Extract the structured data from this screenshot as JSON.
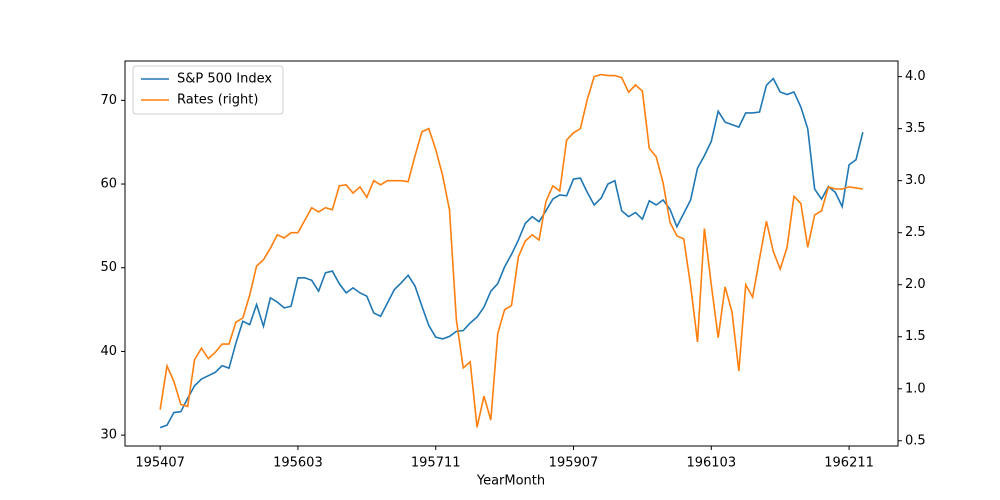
{
  "chart_data": {
    "type": "line",
    "xlabel": "YearMonth",
    "categories": [
      "195407",
      null,
      null,
      null,
      null,
      null,
      null,
      null,
      null,
      null,
      null,
      null,
      null,
      null,
      null,
      null,
      null,
      null,
      null,
      null,
      "195603",
      null,
      null,
      null,
      null,
      null,
      null,
      null,
      null,
      null,
      null,
      null,
      null,
      null,
      null,
      null,
      null,
      null,
      null,
      null,
      "195711",
      null,
      null,
      null,
      null,
      null,
      null,
      null,
      null,
      null,
      null,
      null,
      null,
      null,
      null,
      null,
      null,
      null,
      null,
      null,
      "195907",
      null,
      null,
      null,
      null,
      null,
      null,
      null,
      null,
      null,
      null,
      null,
      null,
      null,
      null,
      null,
      null,
      null,
      null,
      null,
      "196103",
      null,
      null,
      null,
      null,
      null,
      null,
      null,
      null,
      null,
      null,
      null,
      null,
      null,
      null,
      null,
      null,
      null,
      null,
      null,
      "196211",
      null,
      null
    ],
    "series": [
      {
        "name": "S&P 500 Index",
        "color": "#1f77b4",
        "axis": "y",
        "values": [
          30.9,
          31.2,
          32.7,
          32.8,
          34.4,
          35.9,
          36.7,
          37.1,
          37.5,
          38.3,
          38.0,
          41.0,
          43.6,
          43.2,
          45.6,
          43.0,
          46.4,
          45.9,
          45.2,
          45.4,
          48.8,
          48.8,
          48.5,
          47.2,
          49.4,
          49.6,
          48.1,
          47.0,
          47.6,
          47.0,
          46.6,
          44.6,
          44.2,
          45.8,
          47.4,
          48.2,
          49.1,
          47.8,
          45.4,
          43.1,
          41.7,
          41.5,
          41.8,
          42.4,
          42.5,
          43.4,
          44.1,
          45.3,
          47.2,
          48.1,
          50.1,
          51.6,
          53.3,
          55.3,
          56.1,
          55.5,
          56.8,
          58.2,
          58.7,
          58.6,
          60.6,
          60.7,
          59.0,
          57.5,
          58.3,
          60.0,
          60.4,
          56.8,
          56.1,
          56.6,
          55.8,
          58.0,
          57.5,
          58.1,
          57.0,
          54.9,
          56.5,
          58.1,
          61.9,
          63.4,
          65.1,
          68.7,
          67.4,
          67.1,
          66.8,
          68.5,
          68.5,
          68.6,
          71.8,
          72.6,
          71.0,
          70.7,
          71.0,
          69.2,
          66.6,
          59.4,
          58.2,
          59.7,
          59.0,
          57.3,
          62.3,
          62.9,
          66.2
        ]
      },
      {
        "name": "Rates (right)",
        "color": "#ff7f0e",
        "axis": "y2",
        "values": [
          0.8,
          1.22,
          1.07,
          0.85,
          0.83,
          1.28,
          1.39,
          1.29,
          1.35,
          1.43,
          1.43,
          1.64,
          1.68,
          1.9,
          2.18,
          2.24,
          2.35,
          2.48,
          2.45,
          2.5,
          2.5,
          2.62,
          2.74,
          2.7,
          2.74,
          2.72,
          2.95,
          2.96,
          2.88,
          2.94,
          2.84,
          3.0,
          2.96,
          3.0,
          3.0,
          3.0,
          2.99,
          3.24,
          3.47,
          3.5,
          3.3,
          3.05,
          2.72,
          1.66,
          1.2,
          1.26,
          0.63,
          0.93,
          0.7,
          1.53,
          1.76,
          1.8,
          2.27,
          2.42,
          2.48,
          2.43,
          2.8,
          2.95,
          2.9,
          3.39,
          3.46,
          3.5,
          3.78,
          4.0,
          4.02,
          4.01,
          4.01,
          3.99,
          3.85,
          3.92,
          3.86,
          3.31,
          3.23,
          2.98,
          2.6,
          2.47,
          2.44,
          1.99,
          1.45,
          2.54,
          2.0,
          1.49,
          1.98,
          1.74,
          1.17,
          2.0,
          1.88,
          2.25,
          2.61,
          2.32,
          2.15,
          2.36,
          2.85,
          2.78,
          2.36,
          2.67,
          2.71,
          2.94,
          2.92,
          2.92,
          2.94,
          2.93,
          2.92
        ]
      }
    ],
    "ylim": [
      28.7,
      74.7
    ],
    "yticks": [
      30,
      40,
      50,
      60,
      70
    ],
    "y2lim": [
      0.45,
      4.15
    ],
    "y2ticks": [
      0.5,
      {
        "value": 1,
        "label": "1.0"
      },
      1.5,
      {
        "value": 2,
        "label": "2.0"
      },
      2.5,
      {
        "value": 3,
        "label": "3.0"
      },
      3.5,
      {
        "value": 4,
        "label": "4.0"
      }
    ],
    "legend": "upper left"
  }
}
